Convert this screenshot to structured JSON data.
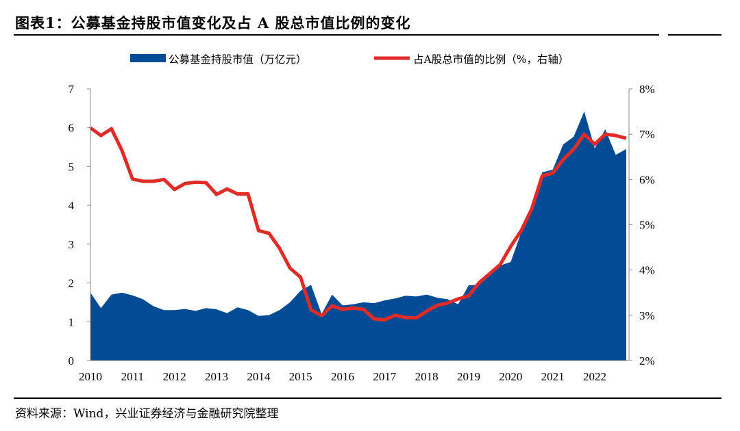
{
  "title": "图表1：公募基金持股市值变化及占 A 股总市值比例的变化",
  "source": "资料来源：Wind，兴业证券经济与金融研究院整理",
  "chart_data": {
    "type": "area+line",
    "legend_position": "top",
    "grid": false,
    "x_tick_labels": [
      "2010",
      "2011",
      "2012",
      "2013",
      "2014",
      "2015",
      "2016",
      "2017",
      "2018",
      "2019",
      "2020",
      "2021",
      "2022"
    ],
    "x_start_year": 2010,
    "frequency": "quarterly",
    "y_left": {
      "ylim": [
        0,
        7
      ],
      "ticks": [
        0,
        1,
        2,
        3,
        4,
        5,
        6,
        7
      ],
      "tick_labels": [
        "0",
        "1",
        "2",
        "3",
        "4",
        "5",
        "6",
        "7"
      ]
    },
    "y_right": {
      "ylim": [
        2,
        8
      ],
      "ticks": [
        2,
        3,
        4,
        5,
        6,
        7,
        8
      ],
      "tick_labels": [
        "2%",
        "3%",
        "4%",
        "5%",
        "6%",
        "7%",
        "8%"
      ]
    },
    "series": [
      {
        "name": "公募基金持股市值（万亿元）",
        "type": "area",
        "axis": "left",
        "color": "#024c96",
        "values": [
          1.75,
          1.35,
          1.7,
          1.75,
          1.68,
          1.58,
          1.4,
          1.3,
          1.3,
          1.33,
          1.28,
          1.35,
          1.32,
          1.22,
          1.37,
          1.3,
          1.15,
          1.17,
          1.3,
          1.5,
          1.8,
          1.95,
          1.2,
          1.7,
          1.42,
          1.45,
          1.5,
          1.48,
          1.55,
          1.6,
          1.67,
          1.65,
          1.7,
          1.62,
          1.58,
          1.45,
          1.94,
          1.95,
          2.2,
          2.45,
          2.54,
          3.3,
          4.0,
          4.85,
          4.92,
          5.57,
          5.77,
          6.42,
          5.47,
          5.96,
          5.3,
          5.45
        ]
      },
      {
        "name": "占A股总市值的比例（%，右轴）",
        "type": "line",
        "axis": "right",
        "color": "#e02b27",
        "values": [
          7.14,
          6.97,
          7.12,
          6.64,
          6.01,
          5.96,
          5.96,
          6.0,
          5.78,
          5.91,
          5.94,
          5.93,
          5.67,
          5.79,
          5.68,
          5.68,
          4.87,
          4.81,
          4.48,
          4.04,
          3.84,
          3.12,
          2.99,
          3.21,
          3.13,
          3.16,
          3.13,
          2.92,
          2.9,
          3.0,
          2.95,
          2.94,
          3.09,
          3.22,
          3.27,
          3.36,
          3.43,
          3.72,
          3.92,
          4.12,
          4.52,
          4.87,
          5.35,
          6.08,
          6.14,
          6.44,
          6.67,
          7.0,
          6.78,
          7.0,
          6.97,
          6.91
        ]
      }
    ]
  }
}
